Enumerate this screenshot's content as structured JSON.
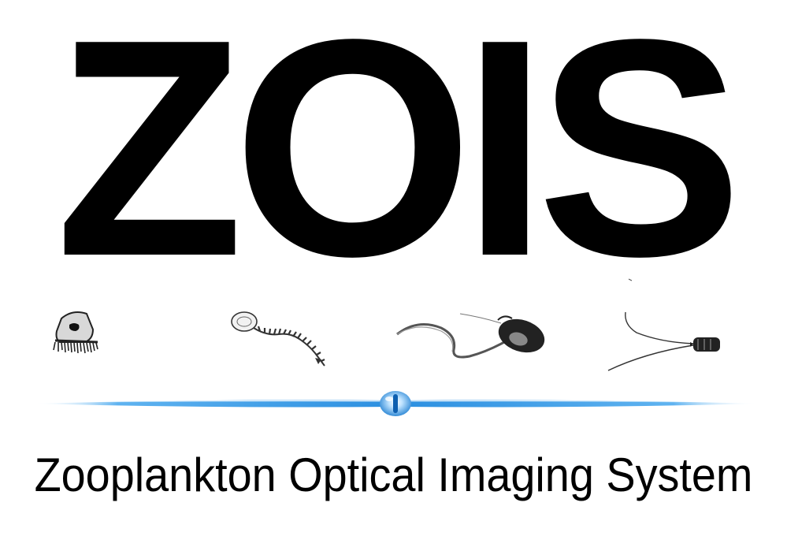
{
  "logo": {
    "title": "ZOIS",
    "subtitle": "Zooplankton Optical Imaging System"
  },
  "colors": {
    "text": "#000000",
    "accent": "#3a9be8",
    "accent_light": "#bfe3ff",
    "background": "#ffffff"
  },
  "icons": {
    "organism_1": "jellyfish-icon",
    "organism_2": "siphonophore-icon",
    "organism_3": "appendicularian-icon",
    "organism_4": "copepod-icon",
    "divider_center": "lens-icon"
  }
}
